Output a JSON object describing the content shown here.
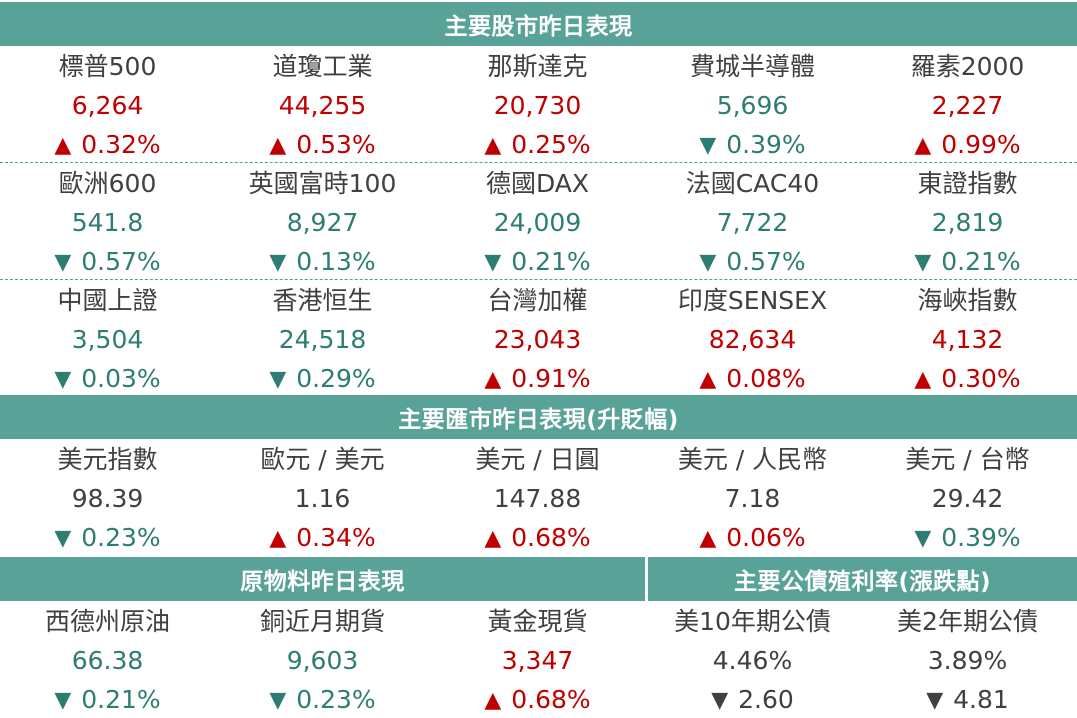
{
  "sections": {
    "stocks": {
      "title": "主要股市昨日表現",
      "row1": [
        {
          "name": "標普500",
          "value": "6,264",
          "change": "0.32%",
          "direction": "up",
          "arrow": "▲"
        },
        {
          "name": "道瓊工業",
          "value": "44,255",
          "change": "0.53%",
          "direction": "up",
          "arrow": "▲"
        },
        {
          "name": "那斯達克",
          "value": "20,730",
          "change": "0.25%",
          "direction": "up",
          "arrow": "▲"
        },
        {
          "name": "費城半導體",
          "value": "5,696",
          "change": "0.39%",
          "direction": "down",
          "arrow": "▼"
        },
        {
          "name": "羅素2000",
          "value": "2,227",
          "change": "0.99%",
          "direction": "up",
          "arrow": "▲"
        }
      ],
      "row2": [
        {
          "name": "歐洲600",
          "value": "541.8",
          "change": "0.57%",
          "direction": "down",
          "arrow": "▼"
        },
        {
          "name": "英國富時100",
          "value": "8,927",
          "change": "0.13%",
          "direction": "down",
          "arrow": "▼"
        },
        {
          "name": "德國DAX",
          "value": "24,009",
          "change": "0.21%",
          "direction": "down",
          "arrow": "▼"
        },
        {
          "name": "法國CAC40",
          "value": "7,722",
          "change": "0.57%",
          "direction": "down",
          "arrow": "▼"
        },
        {
          "name": "東證指數",
          "value": "2,819",
          "change": "0.21%",
          "direction": "down",
          "arrow": "▼"
        }
      ],
      "row3": [
        {
          "name": "中國上證",
          "value": "3,504",
          "change": "0.03%",
          "direction": "down",
          "arrow": "▼"
        },
        {
          "name": "香港恒生",
          "value": "24,518",
          "change": "0.29%",
          "direction": "down",
          "arrow": "▼"
        },
        {
          "name": "台灣加權",
          "value": "23,043",
          "change": "0.91%",
          "direction": "up",
          "arrow": "▲"
        },
        {
          "name": "印度SENSEX",
          "value": "82,634",
          "change": "0.08%",
          "direction": "up",
          "arrow": "▲"
        },
        {
          "name": "海峽指數",
          "value": "4,132",
          "change": "0.30%",
          "direction": "up",
          "arrow": "▲"
        }
      ]
    },
    "fx": {
      "title": "主要匯市昨日表現(升貶幅)",
      "row1": [
        {
          "name": "美元指數",
          "value": "98.39",
          "change": "0.23%",
          "direction": "down",
          "arrow": "▼"
        },
        {
          "name": "歐元 / 美元",
          "value": "1.16",
          "change": "0.34%",
          "direction": "up",
          "arrow": "▲"
        },
        {
          "name": "美元 / 日圓",
          "value": "147.88",
          "change": "0.68%",
          "direction": "up",
          "arrow": "▲"
        },
        {
          "name": "美元 / 人民幣",
          "value": "7.18",
          "change": "0.06%",
          "direction": "up",
          "arrow": "▲"
        },
        {
          "name": "美元 / 台幣",
          "value": "29.42",
          "change": "0.39%",
          "direction": "down",
          "arrow": "▼"
        }
      ]
    },
    "commodities": {
      "title": "原物料昨日表現",
      "row1": [
        {
          "name": "西德州原油",
          "value": "66.38",
          "change": "0.21%",
          "direction": "down",
          "arrow": "▼"
        },
        {
          "name": "銅近月期貨",
          "value": "9,603",
          "change": "0.23%",
          "direction": "down",
          "arrow": "▼"
        },
        {
          "name": "黃金現貨",
          "value": "3,347",
          "change": "0.68%",
          "direction": "up",
          "arrow": "▲"
        }
      ]
    },
    "bonds": {
      "title": "主要公債殖利率(漲跌點)",
      "row1": [
        {
          "name": "美10年期公債",
          "value": "4.46%",
          "change": "2.60",
          "direction": "neutral",
          "arrow": "▼"
        },
        {
          "name": "美2年期公債",
          "value": "3.89%",
          "change": "4.81",
          "direction": "neutral",
          "arrow": "▼"
        }
      ]
    }
  },
  "colors": {
    "header_bg": "#58a297",
    "up": "#c00000",
    "down": "#2e7d72",
    "neutral": "#404040"
  }
}
